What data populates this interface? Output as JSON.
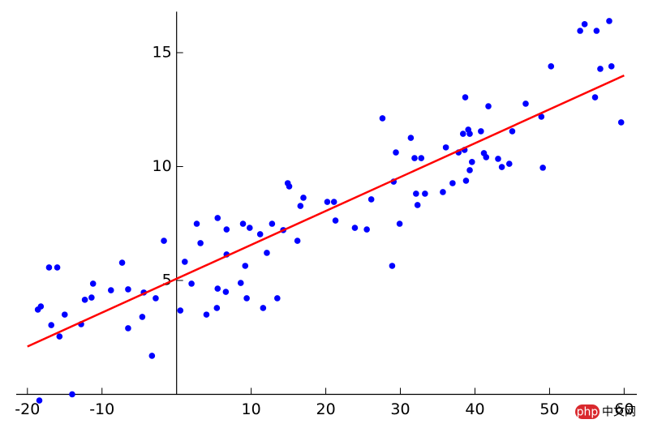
{
  "chart_data": {
    "type": "scatter",
    "xlim": [
      -21.5,
      61.7
    ],
    "ylim": [
      -0.3,
      16.8
    ],
    "xticks": [
      -20,
      -10,
      10,
      20,
      30,
      40,
      50,
      60
    ],
    "yticks": [
      5,
      10,
      15
    ],
    "series": [
      {
        "type": "scatter",
        "color": "#0000ff",
        "x": [
          -18.4,
          -14.0,
          -18.6,
          -18.2,
          -17.1,
          -16.0,
          -16.8,
          -15.7,
          -15.0,
          -12.8,
          -12.3,
          -11.4,
          -11.2,
          -8.8,
          -7.3,
          -6.5,
          -6.5,
          -4.6,
          -4.4,
          -3.3,
          -2.8,
          -1.7,
          0.5,
          1.1,
          2.0,
          2.7,
          3.2,
          4.0,
          5.4,
          5.5,
          5.5,
          6.6,
          6.7,
          6.7,
          8.6,
          8.9,
          9.2,
          9.4,
          9.8,
          11.2,
          11.6,
          12.1,
          12.8,
          13.5,
          14.3,
          14.9,
          15.1,
          16.2,
          16.6,
          17.0,
          20.2,
          21.1,
          21.3,
          23.9,
          25.5,
          26.1,
          27.6,
          28.9,
          29.1,
          29.4,
          29.9,
          31.4,
          31.9,
          32.1,
          32.3,
          32.8,
          33.3,
          35.7,
          36.1,
          37.0,
          37.8,
          38.4,
          38.6,
          38.7,
          38.8,
          39.1,
          39.3,
          39.3,
          39.6,
          40.8,
          41.2,
          41.5,
          41.8,
          43.1,
          43.6,
          44.6,
          45.0,
          46.8,
          48.9,
          49.1,
          50.2,
          54.1,
          54.7,
          56.3,
          56.1,
          56.8,
          58.0,
          58.3,
          59.6
        ],
        "values": [
          -0.27,
          0.0,
          3.72,
          3.86,
          5.57,
          5.57,
          3.04,
          2.54,
          3.5,
          3.08,
          4.15,
          4.25,
          4.86,
          4.57,
          5.78,
          4.61,
          2.9,
          3.4,
          4.47,
          1.69,
          4.22,
          6.74,
          3.68,
          5.82,
          4.86,
          7.49,
          6.64,
          3.5,
          3.79,
          7.74,
          4.64,
          4.5,
          7.24,
          6.14,
          4.89,
          7.49,
          5.64,
          4.22,
          7.31,
          7.03,
          3.79,
          6.21,
          7.49,
          4.22,
          7.21,
          9.27,
          9.13,
          6.74,
          8.27,
          8.63,
          8.45,
          8.45,
          7.63,
          7.31,
          7.24,
          8.56,
          12.12,
          5.64,
          9.34,
          10.62,
          7.49,
          11.26,
          10.37,
          8.81,
          8.31,
          10.37,
          8.81,
          8.88,
          10.84,
          9.27,
          10.62,
          11.44,
          10.73,
          13.04,
          9.38,
          11.62,
          11.44,
          9.84,
          10.2,
          11.55,
          10.59,
          10.41,
          12.65,
          10.34,
          9.98,
          10.12,
          11.55,
          12.76,
          12.19,
          9.95,
          14.4,
          15.96,
          16.25,
          15.96,
          13.04,
          14.29,
          16.39,
          14.4,
          11.94
        ]
      },
      {
        "type": "line",
        "color": "#ff0000",
        "x": [
          -20,
          60
        ],
        "values": [
          2.1,
          14.0
        ]
      }
    ]
  },
  "watermark": {
    "logo": "php",
    "text": "中文网"
  }
}
